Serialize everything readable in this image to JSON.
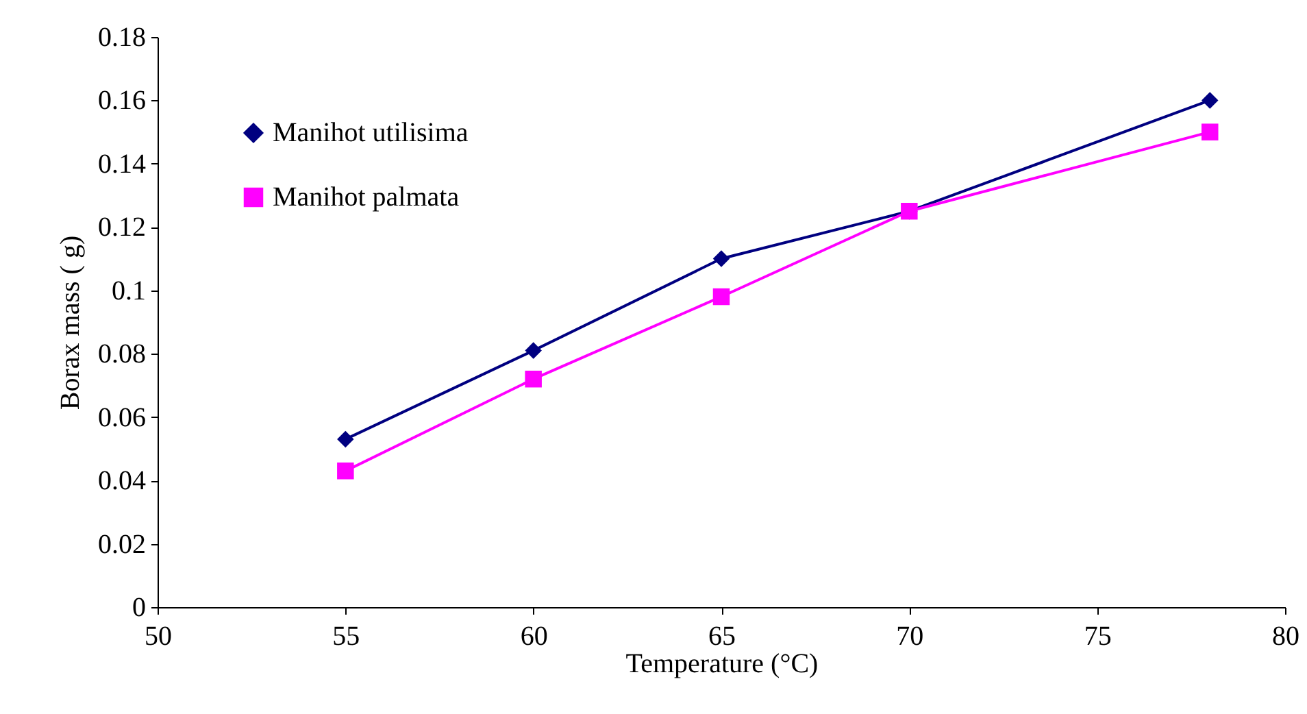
{
  "chart_data": {
    "type": "line",
    "xlabel": "Temperature (°C)",
    "ylabel": "Borax mass ( g)",
    "x": [
      55,
      60,
      65,
      70,
      78
    ],
    "series": [
      {
        "name": "Manihot utilisima",
        "color": "#000080",
        "marker": "diamond",
        "values": [
          0.053,
          0.081,
          0.11,
          0.125,
          0.16
        ]
      },
      {
        "name": "Manihot palmata",
        "color": "#ff00ff",
        "marker": "square",
        "values": [
          0.043,
          0.072,
          0.098,
          0.125,
          0.15
        ]
      }
    ],
    "xlim": [
      50,
      80
    ],
    "xticks": [
      50,
      55,
      60,
      65,
      70,
      75,
      80
    ],
    "ylim": [
      0,
      0.18
    ],
    "yticks": [
      0,
      0.02,
      0.04,
      0.06,
      0.08,
      0.1,
      0.12,
      0.14,
      0.16,
      0.18
    ],
    "grid": false,
    "legend": "top left",
    "line_style": "solid"
  }
}
